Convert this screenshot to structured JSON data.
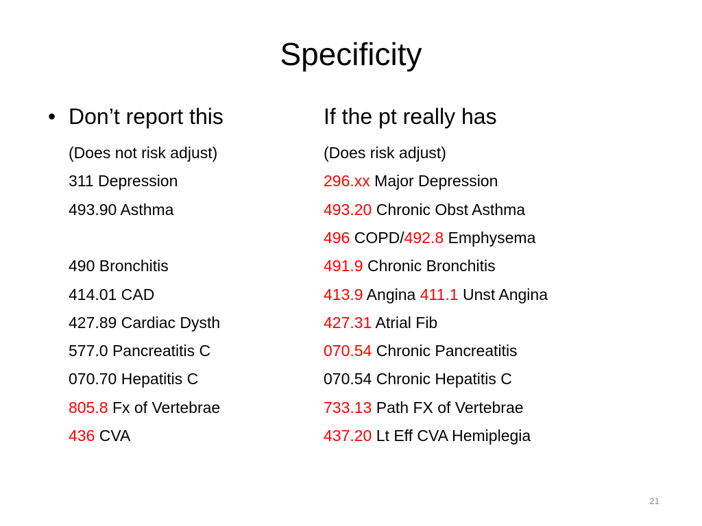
{
  "slide": {
    "title": "Specificity",
    "headers": {
      "left": "Don’t report this",
      "right": "If the pt really has"
    },
    "rows": [
      {
        "left": [
          {
            "text": "(Does not risk adjust)"
          }
        ],
        "right": [
          {
            "text": "(Does risk adjust)"
          }
        ]
      },
      {
        "left": [
          {
            "text": "311 Depression"
          }
        ],
        "right": [
          {
            "text": "296.xx",
            "color": "#ff0000"
          },
          {
            "text": " Major Depression"
          }
        ]
      },
      {
        "left": [
          {
            "text": "493.90 Asthma"
          }
        ],
        "right": [
          {
            "text": "493.20",
            "color": "#ff0000"
          },
          {
            "text": " Chronic Obst Asthma"
          }
        ]
      },
      {
        "right": [
          {
            "text": "496",
            "color": "#ff0000"
          },
          {
            "text": " COPD/"
          },
          {
            "text": "492.8",
            "color": "#ff0000"
          },
          {
            "text": " Emphysema"
          }
        ]
      },
      {
        "left": [
          {
            "text": "490 Bronchitis"
          }
        ],
        "right": [
          {
            "text": "491.9",
            "color": "#ff0000"
          },
          {
            "text": " Chronic Bronchitis"
          }
        ]
      },
      {
        "left": [
          {
            "text": "414.01 CAD"
          }
        ],
        "right": [
          {
            "text": "413.9",
            "color": "#ff0000"
          },
          {
            "text": " Angina "
          },
          {
            "text": "411.1",
            "color": "#ff0000"
          },
          {
            "text": " Unst Angina"
          }
        ]
      },
      {
        "left": [
          {
            "text": "427.89 Cardiac Dysth"
          }
        ],
        "right": [
          {
            "text": "427.31",
            "color": "#ff0000"
          },
          {
            "text": " Atrial Fib"
          }
        ]
      },
      {
        "left": [
          {
            "text": "577.0 Pancreatitis C"
          }
        ],
        "right": [
          {
            "text": "070.54",
            "color": "#ff0000"
          },
          {
            "text": " Chronic Pancreatitis"
          }
        ]
      },
      {
        "left": [
          {
            "text": "070.70 Hepatitis C"
          }
        ],
        "right": [
          {
            "text": "070.54 Chronic Hepatitis C"
          }
        ]
      },
      {
        "left": [
          {
            "text": "805.8",
            "color": "#ff0000"
          },
          {
            "text": " Fx of Vertebrae"
          }
        ],
        "right": [
          {
            "text": "733.13",
            "color": "#ff0000"
          },
          {
            "text": " Path FX of Vertebrae"
          }
        ]
      },
      {
        "left": [
          {
            "text": "436",
            "color": "#ff0000"
          },
          {
            "text": " CVA"
          }
        ],
        "right": [
          {
            "text": "437.20",
            "color": "#ff0000"
          },
          {
            "text": " Lt Eff CVA Hemiplegia"
          }
        ]
      }
    ],
    "page_number": "21"
  }
}
